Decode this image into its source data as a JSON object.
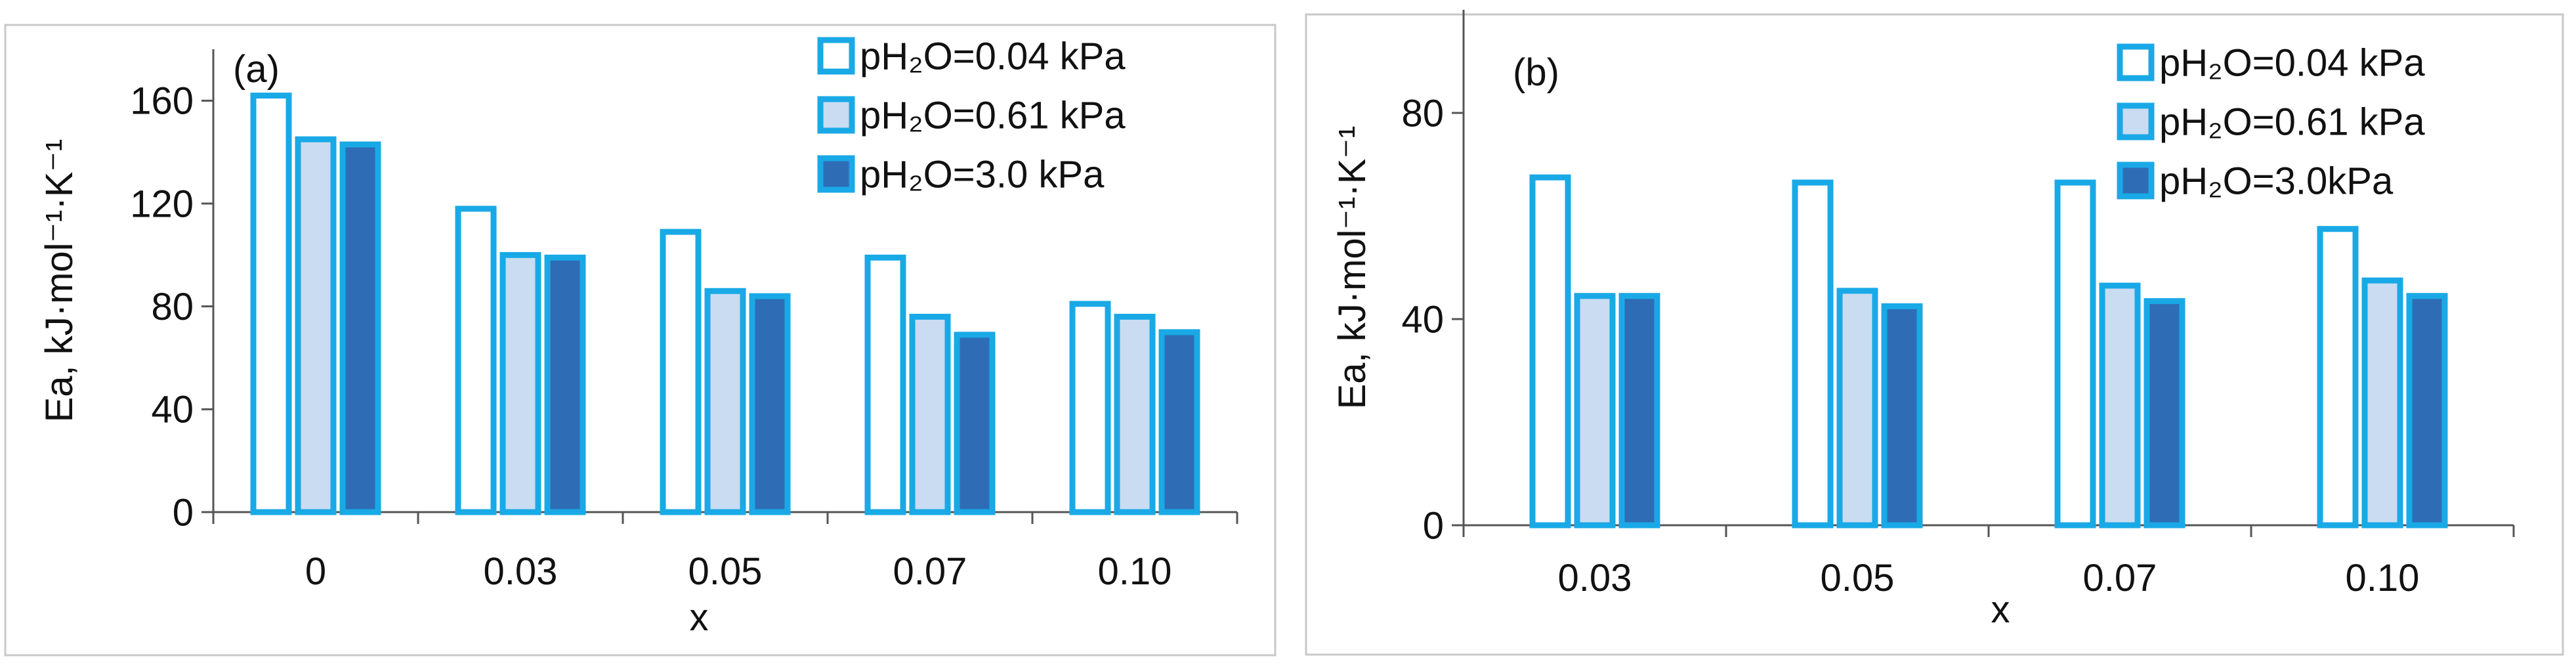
{
  "colors": {
    "outline": "#19a9e6",
    "fill_low": "#ffffff",
    "fill_mid": "#c9dcf1",
    "fill_high": "#2e6db5",
    "axis": "#555555",
    "panel_border": "#c8c8c8"
  },
  "chart_data": [
    {
      "type": "bar",
      "panel_label": "(a)",
      "title": "",
      "xlabel": "x",
      "ylabel": "Ea, kJ·mol⁻¹·K⁻¹",
      "categories": [
        "0",
        "0.03",
        "0.05",
        "0.07",
        "0.10"
      ],
      "ylim": [
        0,
        180
      ],
      "yticks": [
        0,
        40,
        80,
        120,
        160
      ],
      "grid": false,
      "legend_position": "top-right",
      "series": [
        {
          "name": "pH₂O=0.04 kPa",
          "values": [
            163,
            119,
            110,
            100,
            82
          ]
        },
        {
          "name": "pH₂O=0.61 kPa",
          "values": [
            146,
            101,
            87,
            77,
            77
          ]
        },
        {
          "name": "pH₂O=3.0 kPa",
          "values": [
            144,
            100,
            85,
            70,
            71
          ]
        }
      ]
    },
    {
      "type": "bar",
      "panel_label": "(b)",
      "title": "",
      "xlabel": "x",
      "ylabel": "Ea, kJ·mol⁻¹·K⁻¹",
      "categories": [
        "0.03",
        "0.05",
        "0.07",
        "0.10"
      ],
      "ylim": [
        0,
        100
      ],
      "yticks": [
        0,
        40,
        80
      ],
      "grid": false,
      "legend_position": "top-right",
      "series": [
        {
          "name": "pH₂O=0.04 kPa",
          "values": [
            68,
            67,
            67,
            58
          ]
        },
        {
          "name": "pH₂O=0.61 kPa",
          "values": [
            45,
            46,
            47,
            48
          ]
        },
        {
          "name": "pH₂O=3.0kPa",
          "values": [
            45,
            43,
            44,
            45
          ]
        }
      ]
    }
  ]
}
